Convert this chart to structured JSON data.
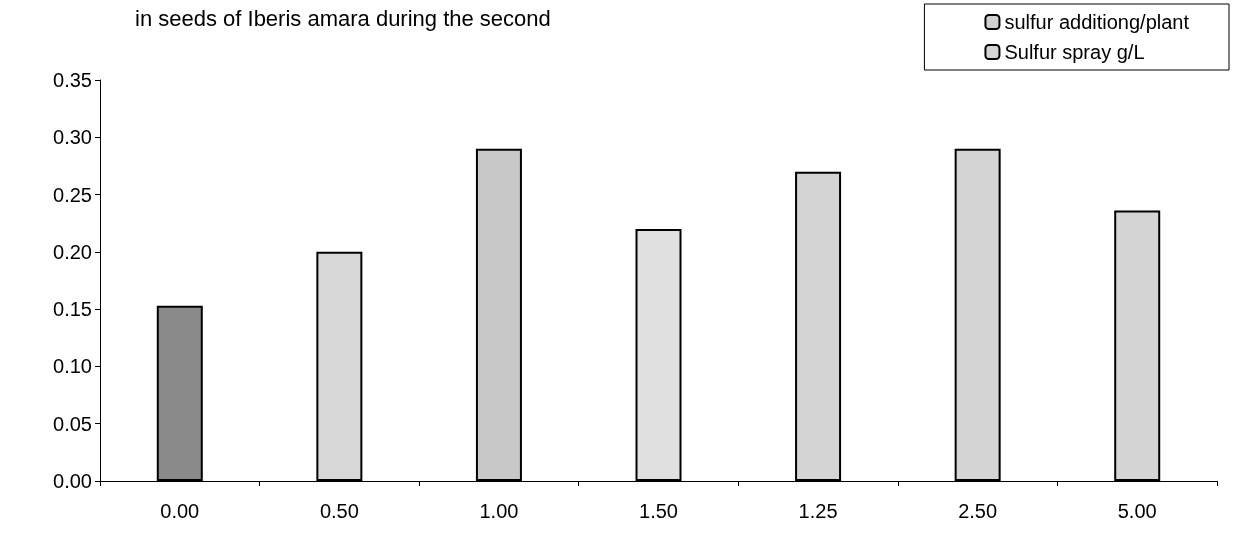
{
  "chart_data": {
    "type": "bar",
    "title": "in seeds of Iberis amara during the second",
    "categories": [
      "0.00",
      "0.50",
      "1.00",
      "1.50",
      "1.25",
      "2.50",
      "5.00"
    ],
    "series": [
      {
        "name": "sulfur additiong/plant",
        "color": "#d0d0d0",
        "colors": [
          "#8a8a8a",
          "#d8d8d8",
          "#c8c8c8",
          "#e0e0e0",
          null,
          null,
          null
        ],
        "values": [
          0.153,
          0.2,
          0.29,
          0.22,
          null,
          null,
          null
        ]
      },
      {
        "name": "Sulfur spray g/L",
        "color": "#d4d4d4",
        "values": [
          null,
          null,
          null,
          null,
          0.27,
          0.29,
          0.236
        ]
      }
    ],
    "ylim": [
      0,
      0.35
    ],
    "yticks": [
      {
        "value": 0,
        "label": "0.00"
      },
      {
        "value": 0.05,
        "label": "0.05"
      },
      {
        "value": 0.1,
        "label": "0.10"
      },
      {
        "value": 0.15,
        "label": "0.15"
      },
      {
        "value": 0.2,
        "label": "0.20"
      },
      {
        "value": 0.25,
        "label": "0.25"
      },
      {
        "value": 0.3,
        "label": "0.30"
      },
      {
        "value": 0.35,
        "label": "0.35"
      }
    ],
    "grid": false,
    "legend": "top right"
  }
}
